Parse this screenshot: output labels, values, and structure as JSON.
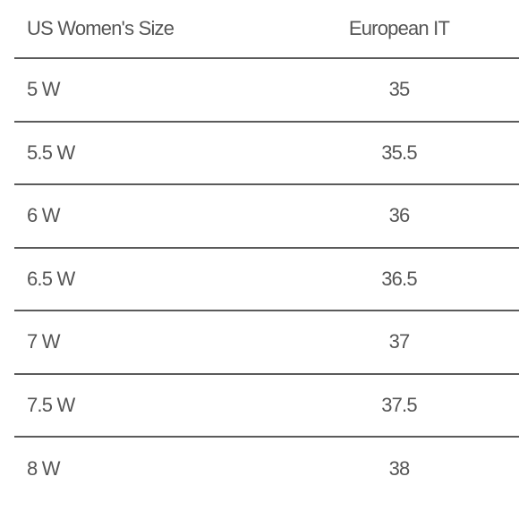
{
  "table": {
    "header": [
      "US Women's Size",
      "European IT"
    ],
    "rows": [
      [
        "5 W",
        35
      ],
      [
        "5.5 W",
        35.5
      ],
      [
        "6 W",
        36
      ],
      [
        "6.5 W",
        36.5
      ],
      [
        "7 W",
        37
      ],
      [
        "7.5 W",
        37.5
      ],
      [
        "8 W",
        38
      ]
    ]
  }
}
